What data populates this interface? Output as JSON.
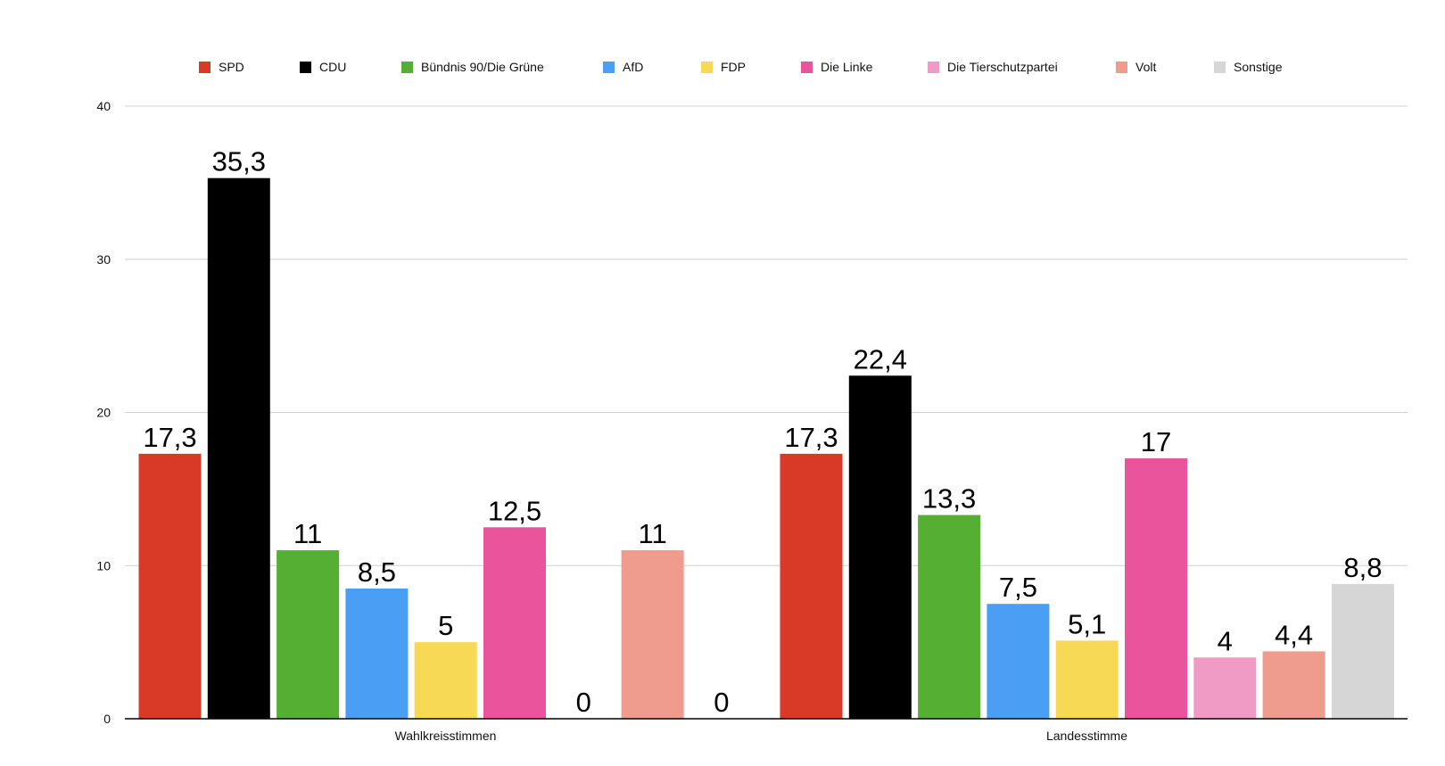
{
  "chart_data": {
    "type": "bar",
    "title": "",
    "xlabel": "",
    "ylabel": "",
    "ylim": [
      0,
      40
    ],
    "yticks": [
      "0",
      "10",
      "20",
      "30",
      "40"
    ],
    "ytick_values": [
      0,
      10,
      20,
      30,
      40
    ],
    "legend_position": "top",
    "grid": true,
    "categories": [
      "Wahlkreisstimmen",
      "Landesstimme"
    ],
    "series": [
      {
        "name": "SPD",
        "color": "#d93a27",
        "values": [
          17.3,
          17.3
        ],
        "labels": [
          "17,3",
          "17,3"
        ]
      },
      {
        "name": "CDU",
        "color": "#000000",
        "values": [
          35.3,
          22.4
        ],
        "labels": [
          "35,3",
          "22,4"
        ]
      },
      {
        "name": "Bündnis 90/Die Grüne",
        "color": "#55af33",
        "values": [
          11,
          13.3
        ],
        "labels": [
          "11",
          "13,3"
        ]
      },
      {
        "name": "AfD",
        "color": "#4a9ff5",
        "values": [
          8.5,
          7.5
        ],
        "labels": [
          "8,5",
          "7,5"
        ]
      },
      {
        "name": "FDP",
        "color": "#f7d955",
        "values": [
          5,
          5.1
        ],
        "labels": [
          "5",
          "5,1"
        ]
      },
      {
        "name": "Die Linke",
        "color": "#e9549c",
        "values": [
          12.5,
          17
        ],
        "labels": [
          "12,5",
          "17"
        ]
      },
      {
        "name": "Die Tierschutzpartei",
        "color": "#f09ac6",
        "values": [
          0,
          4
        ],
        "labels": [
          "0",
          "4"
        ]
      },
      {
        "name": "Volt",
        "color": "#ef9b8e",
        "values": [
          11,
          4.4
        ],
        "labels": [
          "11",
          "4,4"
        ]
      },
      {
        "name": "Sonstige",
        "color": "#d6d6d6",
        "values": [
          0,
          8.8
        ],
        "labels": [
          "0",
          "8,8"
        ]
      }
    ]
  }
}
